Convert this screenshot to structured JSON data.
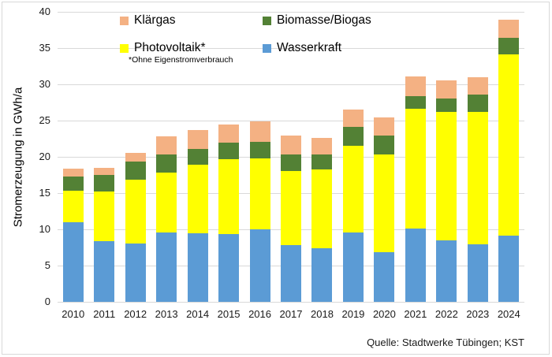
{
  "colors": {
    "klaergas": "#F4B183",
    "biomasse": "#538135",
    "photovoltaik": "#FFFF00",
    "wasserkraft": "#5B9BD5",
    "gridline": "#D9D9D9"
  },
  "legend": {
    "items": [
      {
        "label": "Klärgas",
        "color_key": "klaergas"
      },
      {
        "label": "Biomasse/Biogas",
        "color_key": "biomasse"
      },
      {
        "label": "Photovoltaik*",
        "color_key": "photovoltaik"
      },
      {
        "label": "Wasserkraft",
        "color_key": "wasserkraft"
      }
    ],
    "footnote": "*Ohne Eigenstromverbrauch"
  },
  "axis": {
    "ylabel": "Stromerzeugung in GWh/a",
    "yticks": [
      0,
      5,
      10,
      15,
      20,
      25,
      30,
      35,
      40
    ],
    "ymax": 40
  },
  "source": "Quelle: Stadtwerke Tübingen; KST",
  "chart_data": {
    "type": "bar",
    "stacked": true,
    "categories": [
      "2010",
      "2011",
      "2012",
      "2013",
      "2014",
      "2015",
      "2016",
      "2017",
      "2018",
      "2019",
      "2020",
      "2021",
      "2022",
      "2023",
      "2024"
    ],
    "series": [
      {
        "name": "Wasserkraft",
        "color": "#5B9BD5",
        "values": [
          11.0,
          8.4,
          8.0,
          9.6,
          9.5,
          9.3,
          10.0,
          7.8,
          7.4,
          9.6,
          6.9,
          10.1,
          8.5,
          7.9,
          9.1
        ]
      },
      {
        "name": "Photovoltaik*",
        "color": "#FFFF00",
        "values": [
          4.3,
          6.8,
          8.9,
          8.2,
          9.4,
          10.4,
          9.8,
          10.3,
          10.9,
          11.9,
          13.4,
          16.5,
          17.7,
          18.3,
          25.0
        ]
      },
      {
        "name": "Biomasse/Biogas",
        "color": "#538135",
        "values": [
          2.0,
          2.3,
          2.5,
          2.5,
          2.2,
          2.3,
          2.3,
          2.2,
          2.0,
          2.6,
          2.6,
          1.8,
          1.9,
          2.4,
          2.3
        ]
      },
      {
        "name": "Klärgas",
        "color": "#F4B183",
        "values": [
          1.1,
          1.0,
          1.2,
          2.5,
          2.6,
          2.5,
          2.8,
          2.6,
          2.3,
          2.4,
          2.5,
          2.7,
          2.4,
          2.4,
          2.5
        ]
      }
    ],
    "title": "",
    "xlabel": "",
    "ylabel": "Stromerzeugung in GWh/a",
    "ylim": [
      0,
      40
    ],
    "grid": true,
    "legend_position": "top",
    "source": "Quelle: Stadtwerke Tübingen; KST"
  }
}
